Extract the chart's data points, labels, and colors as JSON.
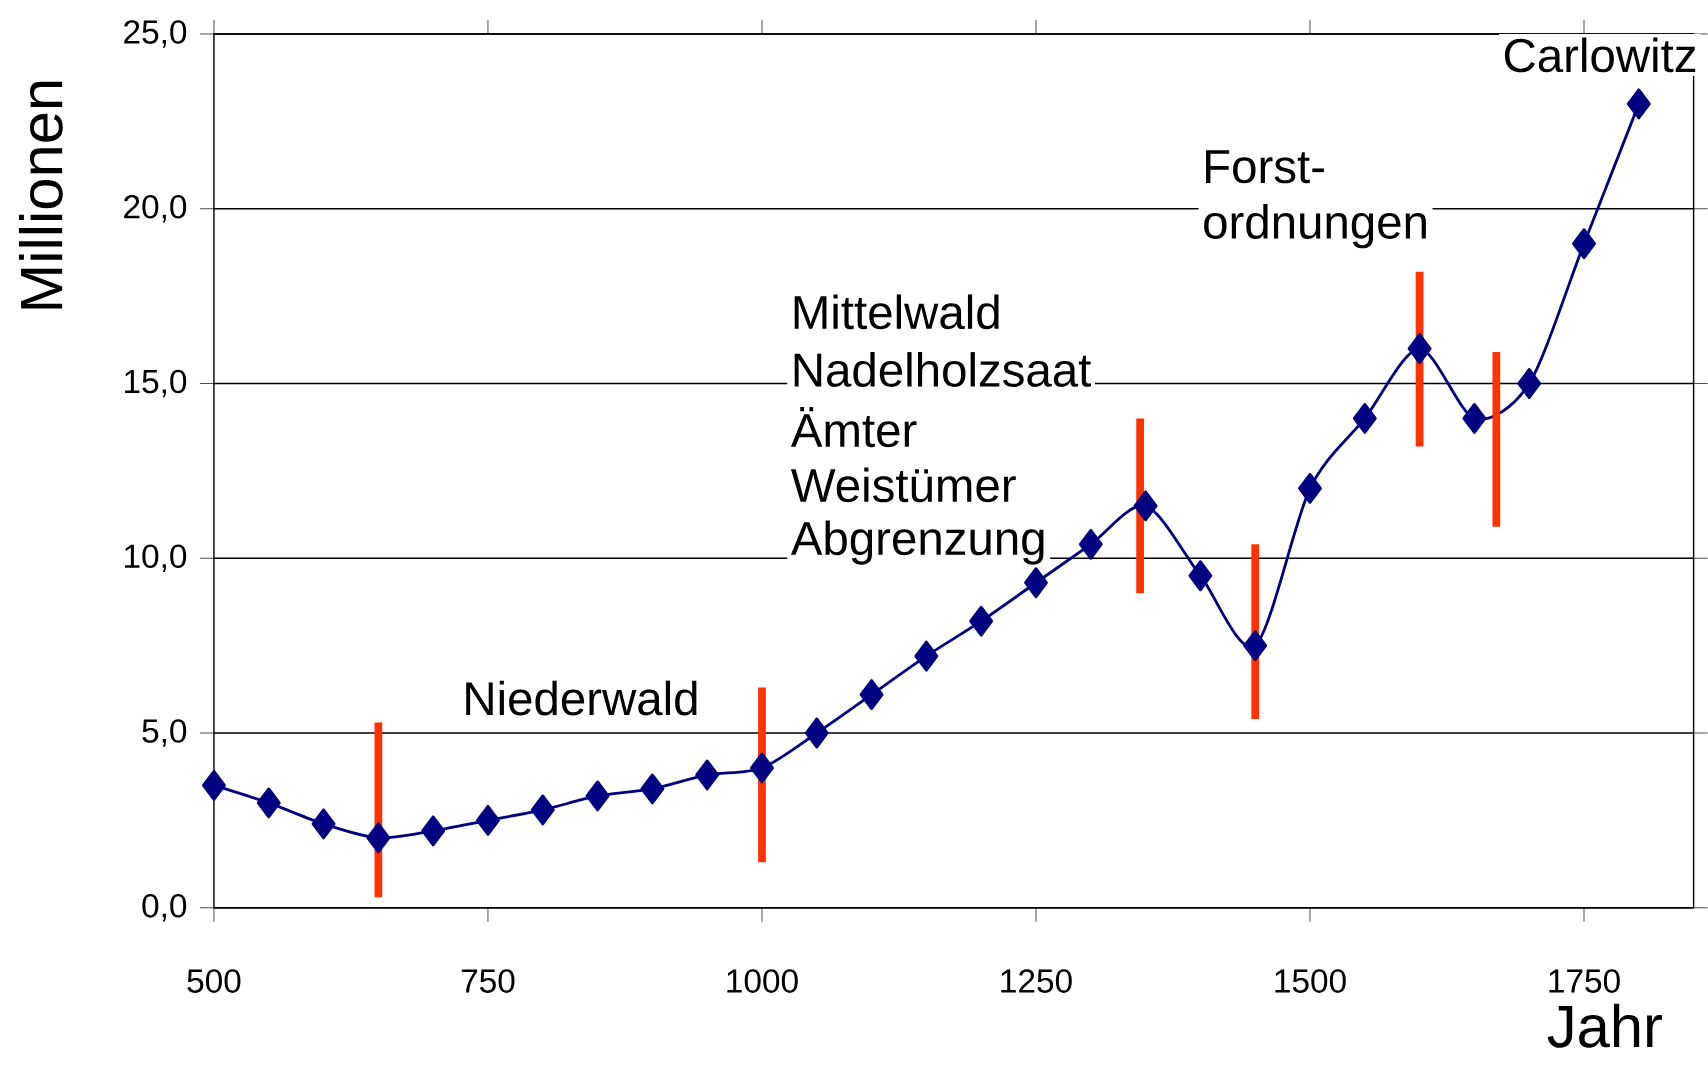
{
  "chart_data": {
    "type": "line",
    "xlabel": "Jahr",
    "ylabel": "Millionen",
    "x": [
      500,
      550,
      600,
      650,
      700,
      750,
      800,
      850,
      900,
      950,
      1000,
      1050,
      1100,
      1150,
      1200,
      1250,
      1300,
      1350,
      1400,
      1450,
      1500,
      1550,
      1600,
      1650,
      1700,
      1750,
      1800
    ],
    "series": [
      {
        "color": "#000080",
        "marker": "diamond",
        "values": [
          3.5,
          3.0,
          2.4,
          2.0,
          2.2,
          2.5,
          2.8,
          3.2,
          3.4,
          3.8,
          4.0,
          5.0,
          6.1,
          7.2,
          8.2,
          9.3,
          10.4,
          11.5,
          9.5,
          7.5,
          12.0,
          14.0,
          16.0,
          14.0,
          15.0,
          19.0,
          23.0
        ]
      },
      {
        "color": "#ff3300",
        "marker": "none",
        "x": [
          650,
          650
        ],
        "values": [
          0.3,
          5.3
        ]
      },
      {
        "color": "#ff3300",
        "marker": "none",
        "x": [
          1000,
          1000
        ],
        "values": [
          1.3,
          6.3
        ]
      },
      {
        "color": "#ff3300",
        "marker": "none",
        "x": [
          1345,
          1345
        ],
        "values": [
          9.0,
          14.0
        ]
      },
      {
        "color": "#ff3300",
        "marker": "none",
        "x": [
          1450,
          1450
        ],
        "values": [
          5.4,
          10.4
        ]
      },
      {
        "color": "#ff3300",
        "marker": "none",
        "x": [
          1600,
          1600
        ],
        "values": [
          13.2,
          18.2
        ]
      },
      {
        "color": "#ff3300",
        "marker": "none",
        "x": [
          1670,
          1670
        ],
        "values": [
          10.9,
          15.9
        ]
      }
    ],
    "xlim": [
      500,
      1850
    ],
    "ylim": [
      0,
      25
    ],
    "xticks": [
      500,
      750,
      1000,
      1250,
      1500,
      1750
    ],
    "yticks": [
      {
        "value": 0,
        "label": "0,0"
      },
      {
        "value": 5,
        "label": "5,0"
      },
      {
        "value": 10,
        "label": "10,0"
      },
      {
        "value": 15,
        "label": "15,0"
      },
      {
        "value": 20,
        "label": "20,0"
      },
      {
        "value": 25,
        "label": "25,0"
      }
    ],
    "grid": "y",
    "annotations": [
      "Niederwald",
      "Mittelwald",
      "Nadelholzsaat",
      "Ämter",
      "Weistümer",
      "Abgrenzung",
      "Forst-",
      "ordnungen",
      "Carlowitz"
    ]
  }
}
